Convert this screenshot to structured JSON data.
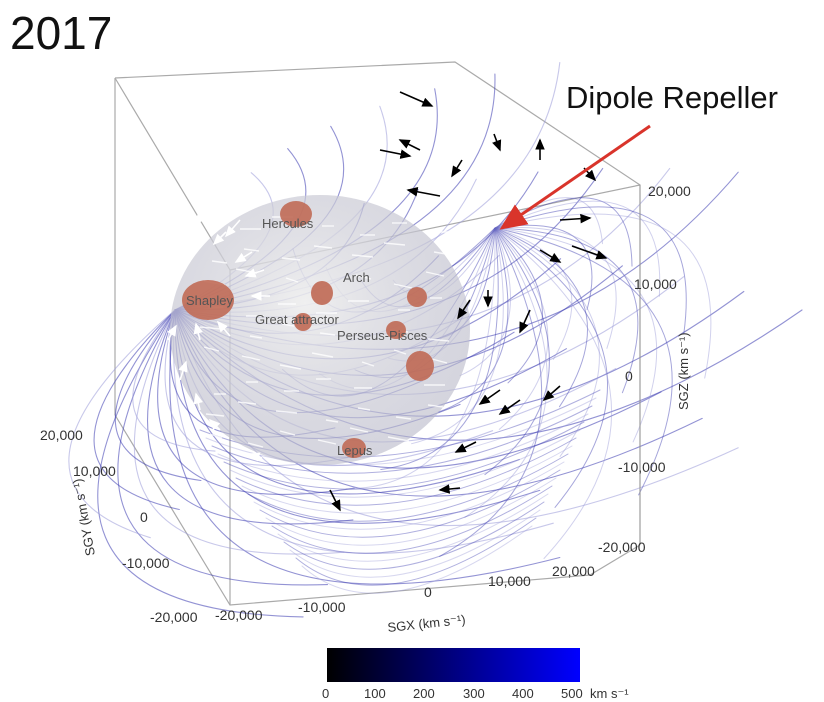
{
  "year": "2017",
  "callout": {
    "label": "Dipole Repeller",
    "color": "#d9342b"
  },
  "regions": {
    "hercules": "Hercules",
    "shapley": "Shapley",
    "arch": "Arch",
    "great_attractor": "Great attractor",
    "perseus_pisces": "Perseus-Pisces",
    "lepus": "Lepus"
  },
  "axes": {
    "sgz": {
      "name": "SGZ (km s⁻¹)",
      "ticks": [
        "20,000",
        "10,000",
        "0",
        "-10,000",
        "-20,000"
      ]
    },
    "sgy": {
      "name": "SGY (km s⁻¹)",
      "ticks": [
        "20,000",
        "10,000",
        "0",
        "-10,000",
        "-20,000"
      ]
    },
    "sgx": {
      "name": "SGX (km s⁻¹)",
      "ticks": [
        "-20,000",
        "-10,000",
        "0",
        "10,000",
        "20,000"
      ]
    }
  },
  "colorbar": {
    "ticks": [
      "0",
      "100",
      "200",
      "300",
      "400",
      "500"
    ],
    "unit": "km s⁻¹",
    "colors": [
      "#000000",
      "#0000ff"
    ]
  },
  "colors": {
    "flow_line": "#3a3ab0",
    "flow_light": "#9a9ad8",
    "cluster": "#c06a55"
  }
}
